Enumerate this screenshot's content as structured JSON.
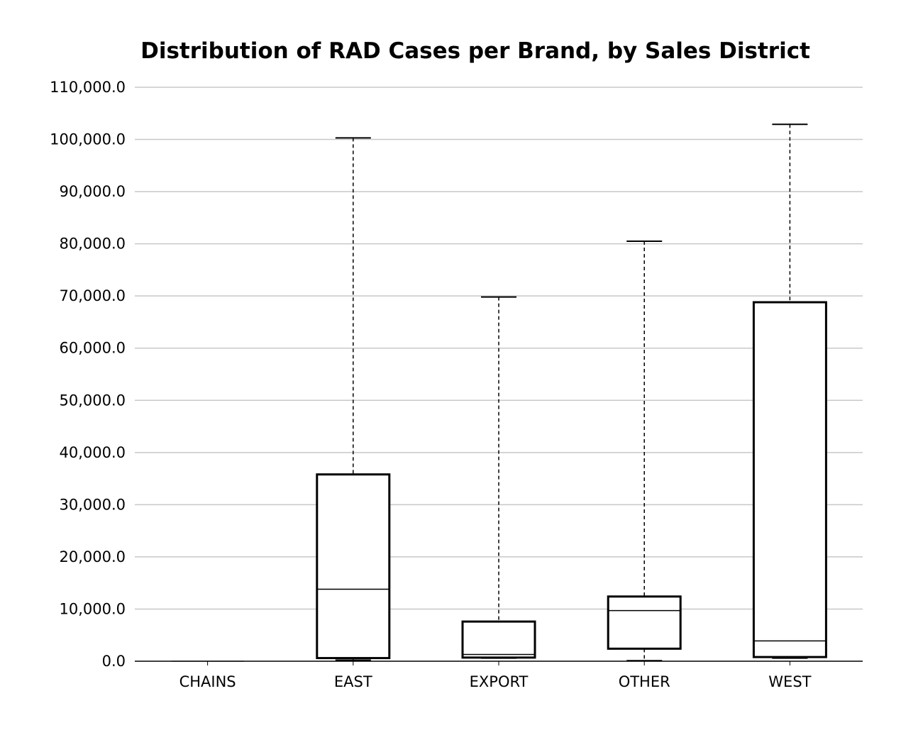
{
  "chart_data": {
    "type": "box",
    "title": "Distribution of RAD Cases per Brand, by Sales District",
    "xlabel": "",
    "ylabel": "",
    "ylim": [
      0,
      110000
    ],
    "yticks": [
      0,
      10000,
      20000,
      30000,
      40000,
      50000,
      60000,
      70000,
      80000,
      90000,
      100000,
      110000
    ],
    "ytick_labels": [
      "0.0",
      "10,000.0",
      "20,000.0",
      "30,000.0",
      "40,000.0",
      "50,000.0",
      "60,000.0",
      "70,000.0",
      "80,000.0",
      "90,000.0",
      "100,000.0",
      "110,000.0"
    ],
    "grid": true,
    "categories": [
      "CHAINS",
      "EAST",
      "EXPORT",
      "OTHER",
      "WEST"
    ],
    "boxes": [
      {
        "category": "CHAINS",
        "min": 0,
        "q1": 0,
        "median": 0,
        "q3": 0,
        "max": 0
      },
      {
        "category": "EAST",
        "min": 200,
        "q1": 600,
        "median": 13800,
        "q3": 35800,
        "max": 100300
      },
      {
        "category": "EXPORT",
        "min": 600,
        "q1": 700,
        "median": 1300,
        "q3": 7600,
        "max": 69800
      },
      {
        "category": "OTHER",
        "min": 100,
        "q1": 2400,
        "median": 9700,
        "q3": 12400,
        "max": 80500
      },
      {
        "category": "WEST",
        "min": 600,
        "q1": 800,
        "median": 3900,
        "q3": 68800,
        "max": 102900
      }
    ]
  }
}
